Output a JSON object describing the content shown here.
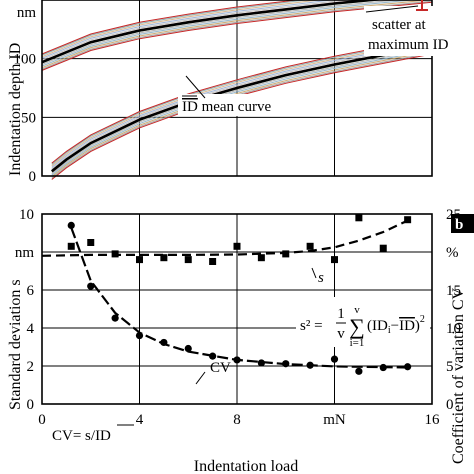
{
  "chart_data": [
    {
      "panel": "a",
      "type": "line",
      "ylabel": "Indentation depth ID",
      "ylim": [
        0,
        150
      ],
      "xlim": [
        0,
        16
      ],
      "yticks": [
        {
          "label": "0",
          "value": 0
        },
        {
          "label": "50",
          "value": 50
        },
        {
          "label": "100",
          "value": 100
        },
        {
          "label": "nm",
          "value": 150
        }
      ],
      "grid": true,
      "annotations": {
        "scatter_line1": "scatter at",
        "scatter_line2": "maximum ID",
        "mean_curve": "ID mean curve",
        "mean_curve_overline": "ID",
        "mean_curve_rest": " mean curve"
      },
      "series": [
        {
          "name": "loading mean",
          "x": [
            0.4,
            1,
            2,
            4,
            6,
            8,
            10,
            12,
            14,
            16
          ],
          "y": [
            4,
            14,
            28,
            48,
            63,
            75,
            86,
            95,
            103,
            111
          ]
        },
        {
          "name": "unloading mean",
          "x": [
            0,
            2,
            4,
            6,
            8,
            10,
            12,
            14,
            16
          ],
          "y": [
            97,
            114,
            124,
            131,
            137,
            142,
            147,
            151,
            155
          ]
        }
      ],
      "scatter_band_width": 12
    },
    {
      "panel": "b",
      "panel_label": "b",
      "type": "scatter",
      "xlabel": "Indentation load",
      "ylabel_left": "Standard deviation s",
      "ylabel_right": "Coefficient of variation CV",
      "xlim": [
        0,
        16
      ],
      "ylim_left": [
        0,
        10
      ],
      "ylim_right": [
        0,
        25
      ],
      "xticks": [
        {
          "label": "0",
          "value": 0
        },
        {
          "label": "4",
          "value": 4
        },
        {
          "label": "8",
          "value": 8
        },
        {
          "label": "mN",
          "value": 12
        },
        {
          "label": "16",
          "value": 16
        }
      ],
      "yticks_left": [
        {
          "label": "0",
          "value": 0
        },
        {
          "label": "2",
          "value": 2
        },
        {
          "label": "4",
          "value": 4
        },
        {
          "label": "6",
          "value": 6
        },
        {
          "label": "nm",
          "value": 8
        },
        {
          "label": "10",
          "value": 10
        }
      ],
      "yticks_right": [
        {
          "label": "0",
          "value": 0
        },
        {
          "label": "5",
          "value": 5
        },
        {
          "label": "10",
          "value": 10
        },
        {
          "label": "15",
          "value": 15
        },
        {
          "label": "%",
          "value": 20
        },
        {
          "label": "25",
          "value": 25
        }
      ],
      "grid": true,
      "series": [
        {
          "name": "s",
          "marker": "square",
          "x": [
            1.2,
            2,
            3,
            4,
            5,
            6,
            7,
            8,
            9,
            10,
            11,
            12,
            13,
            14,
            15
          ],
          "y": [
            8.3,
            8.5,
            7.9,
            7.6,
            7.7,
            7.6,
            7.5,
            8.3,
            7.7,
            7.9,
            8.3,
            7.6,
            9.8,
            8.2,
            9.7
          ]
        },
        {
          "name": "CV",
          "marker": "circle",
          "x": [
            1.2,
            2,
            3,
            4,
            5,
            6,
            7,
            8,
            9,
            10,
            11,
            12,
            13,
            14,
            15
          ],
          "y": [
            23.5,
            15.5,
            11.3,
            9,
            8.1,
            7.3,
            6.3,
            5.8,
            5.4,
            5.3,
            5.1,
            5.9,
            4.3,
            4.8,
            4.9
          ]
        }
      ],
      "fit_s": {
        "x": [
          0,
          2,
          4,
          6,
          8,
          10,
          11,
          12,
          13,
          14,
          15
        ],
        "y": [
          7.8,
          7.85,
          7.85,
          7.85,
          7.87,
          7.95,
          8.05,
          8.25,
          8.6,
          9.05,
          9.65
        ]
      },
      "fit_cv": {
        "x": [
          1.2,
          2,
          3,
          4,
          5,
          6,
          8,
          10,
          12,
          14,
          15
        ],
        "y": [
          23.2,
          16.2,
          12.0,
          9.4,
          7.9,
          6.9,
          5.8,
          5.25,
          4.95,
          4.85,
          4.8
        ]
      },
      "annotations": {
        "s_label": "s",
        "cv_label": "CV",
        "formula_lhs": "s² =",
        "formula_frac_num": "1",
        "formula_frac_den": "v",
        "formula_sum": "∑",
        "formula_top": "v",
        "formula_bottom": "i=1",
        "formula_body_1": "(ID",
        "formula_body_sub": "i",
        "formula_body_2": "−",
        "formula_body_3": "ID",
        "formula_body_4": ")",
        "formula_sq": "2",
        "cv_def_1": "CV= s/",
        "cv_def_2": "ID"
      }
    }
  ]
}
